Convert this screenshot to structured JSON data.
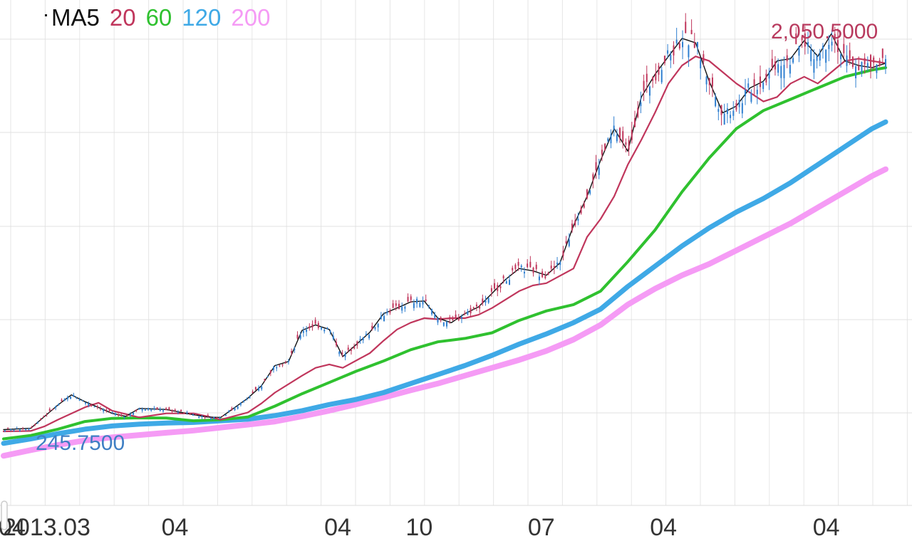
{
  "chart_data": {
    "type": "line",
    "title": "",
    "legend": {
      "placement": "top-left",
      "entries": [
        {
          "label": "MA5",
          "color": "#111111"
        },
        {
          "label": "20",
          "color": "#c0365c"
        },
        {
          "label": "60",
          "color": "#2fc12f"
        },
        {
          "label": "120",
          "color": "#3fa9e6"
        },
        {
          "label": "200",
          "color": "#f59bf5"
        }
      ]
    },
    "x_tick_labels": [
      "2013.03",
      "04",
      "04",
      "04",
      "10",
      "07",
      "04",
      "04"
    ],
    "x_tick_months": [
      0,
      1,
      13,
      25,
      31,
      40,
      49,
      61
    ],
    "x_range_months": [
      0,
      66
    ],
    "grid": true,
    "annotations": {
      "max_label": "2,050.5000",
      "min_label": "245.7500"
    },
    "ylim": [
      -90,
      2150
    ],
    "series": [
      {
        "name": "MA5",
        "color": "#111111",
        "x": [
          0,
          2,
          4,
          5,
          6,
          8,
          9,
          10,
          12,
          14,
          15,
          16,
          18,
          19,
          20,
          21,
          22,
          23,
          24,
          25,
          27,
          28,
          29,
          30,
          31,
          32,
          33,
          34,
          35,
          36,
          37,
          38,
          39,
          40,
          41,
          42,
          43,
          44,
          45,
          46,
          47,
          48,
          49,
          50,
          51,
          52,
          53,
          54,
          55,
          56,
          57,
          58,
          59,
          60,
          61,
          62,
          63,
          64,
          65
        ],
        "y": [
          246,
          252,
          355,
          400,
          370,
          318,
          305,
          340,
          335,
          312,
          302,
          300,
          385,
          440,
          530,
          548,
          686,
          710,
          690,
          570,
          678,
          760,
          785,
          812,
          816,
          740,
          720,
          760,
          790,
          850,
          912,
          960,
          950,
          930,
          985,
          1150,
          1280,
          1440,
          1580,
          1480,
          1720,
          1820,
          1900,
          1980,
          1960,
          1790,
          1650,
          1680,
          1760,
          1790,
          1880,
          1890,
          1970,
          1900,
          2000,
          1880,
          1860,
          1850,
          1870
        ]
      },
      {
        "name": "20",
        "color": "#c0365c",
        "x": [
          0,
          2,
          3,
          4,
          6,
          7,
          8,
          10,
          12,
          14,
          15,
          16,
          18,
          19,
          20,
          22,
          23,
          24,
          25,
          27,
          28,
          29,
          30,
          31,
          32,
          33,
          34,
          35,
          36,
          38,
          39,
          40,
          42,
          43,
          44,
          45,
          46,
          47,
          48,
          49,
          50,
          51,
          52,
          53,
          54,
          55,
          56,
          57,
          58,
          59,
          60,
          61,
          62,
          63,
          65
        ],
        "y": [
          238,
          240,
          260,
          290,
          345,
          365,
          330,
          300,
          318,
          318,
          305,
          290,
          322,
          362,
          410,
          485,
          520,
          535,
          520,
          585,
          640,
          690,
          720,
          740,
          735,
          740,
          740,
          755,
          785,
          860,
          885,
          895,
          960,
          1100,
          1180,
          1280,
          1420,
          1530,
          1650,
          1780,
          1860,
          1900,
          1880,
          1830,
          1780,
          1740,
          1700,
          1720,
          1780,
          1810,
          1780,
          1830,
          1880,
          1890,
          1870
        ]
      },
      {
        "name": "60",
        "color": "#2fc12f",
        "x": [
          0,
          2,
          4,
          6,
          8,
          10,
          12,
          14,
          16,
          18,
          20,
          22,
          24,
          26,
          28,
          30,
          32,
          34,
          36,
          38,
          40,
          42,
          44,
          46,
          48,
          50,
          52,
          54,
          56,
          58,
          60,
          62,
          64,
          65
        ],
        "y": [
          205,
          220,
          248,
          282,
          296,
          298,
          297,
          285,
          290,
          302,
          350,
          405,
          455,
          505,
          550,
          600,
          635,
          650,
          675,
          730,
          772,
          800,
          860,
          990,
          1130,
          1300,
          1450,
          1580,
          1660,
          1710,
          1760,
          1810,
          1840,
          1850
        ]
      },
      {
        "name": "120",
        "color": "#3fa9e6",
        "x": [
          0,
          2,
          4,
          6,
          8,
          10,
          12,
          14,
          16,
          18,
          20,
          22,
          24,
          26,
          28,
          30,
          32,
          34,
          36,
          38,
          40,
          42,
          44,
          46,
          48,
          50,
          52,
          54,
          56,
          58,
          60,
          62,
          64,
          65
        ],
        "y": [
          185,
          205,
          228,
          248,
          262,
          270,
          275,
          278,
          285,
          292,
          308,
          330,
          357,
          380,
          410,
          450,
          490,
          530,
          575,
          625,
          670,
          720,
          780,
          880,
          970,
          1060,
          1140,
          1210,
          1270,
          1340,
          1420,
          1500,
          1580,
          1610
        ]
      },
      {
        "name": "200",
        "color": "#f59bf5",
        "x": [
          0,
          2,
          4,
          6,
          8,
          10,
          12,
          14,
          16,
          18,
          20,
          22,
          24,
          26,
          28,
          30,
          32,
          34,
          36,
          38,
          40,
          42,
          44,
          46,
          48,
          50,
          52,
          54,
          56,
          58,
          60,
          62,
          64,
          65
        ],
        "y": [
          130,
          155,
          178,
          198,
          212,
          222,
          232,
          242,
          255,
          268,
          282,
          305,
          330,
          358,
          388,
          420,
          450,
          485,
          520,
          555,
          595,
          645,
          710,
          800,
          870,
          930,
          980,
          1040,
          1100,
          1160,
          1230,
          1300,
          1370,
          1400
        ]
      }
    ]
  }
}
